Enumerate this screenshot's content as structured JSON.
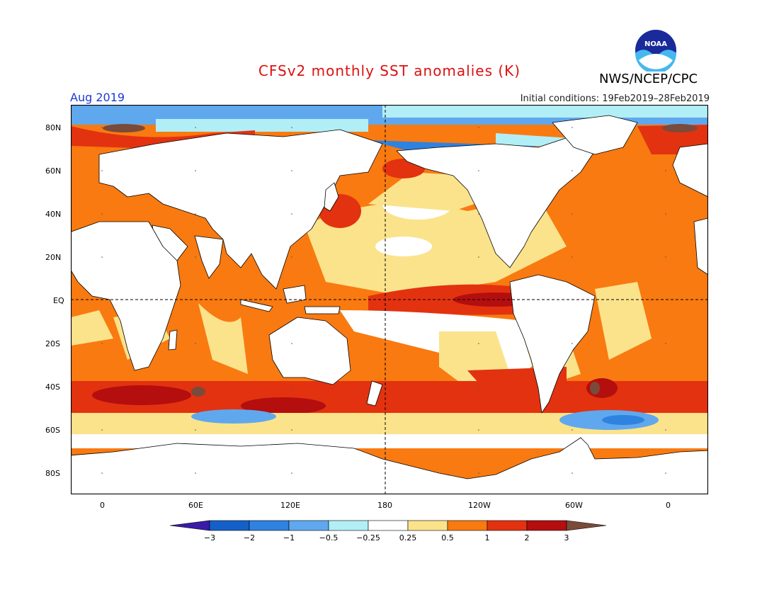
{
  "header": {
    "title": "CFSv2 monthly SST anomalies (K)",
    "month": "Aug 2019",
    "init": "Initial conditions: 19Feb2019–28Feb2019",
    "agency": "NWS/NCEP/CPC",
    "logo_text": "NOAA"
  },
  "colors": {
    "title": "#dd1111",
    "month": "#1d37d8",
    "land": "#ffffff",
    "neutral": "#ffffff"
  },
  "map": {
    "lat_labels": [
      "80N",
      "60N",
      "40N",
      "20N",
      "EQ",
      "20S",
      "40S",
      "60S",
      "80S"
    ],
    "lon_labels": [
      "0",
      "60E",
      "120E",
      "180",
      "120W",
      "60W",
      "0"
    ]
  },
  "colorbar": {
    "ticks": [
      "−3",
      "−2",
      "−1",
      "−0.5",
      "−0.25",
      "0.25",
      "0.5",
      "1",
      "2",
      "3"
    ],
    "colors": [
      "#3a1aa8",
      "#1560c8",
      "#2f82e0",
      "#5fa8ee",
      "#b2eef6",
      "#ffffff",
      "#fbe38c",
      "#f97a10",
      "#e33210",
      "#b40e0e",
      "#7a4a3a"
    ]
  }
}
